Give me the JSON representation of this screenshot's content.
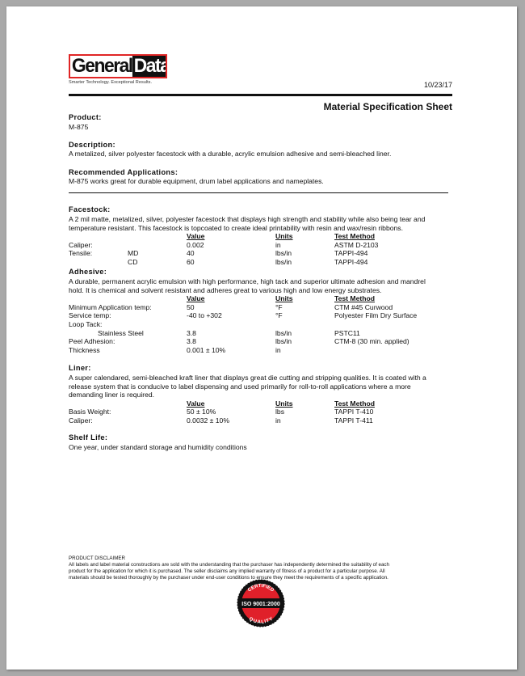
{
  "logo": {
    "text_a": "General",
    "text_b": "Data",
    "tagline": "Smarter Technology. Exceptional Results."
  },
  "date": "10/23/17",
  "title": "Material Specification Sheet",
  "product": {
    "heading": "Product:",
    "value": "M-875"
  },
  "description": {
    "heading": "Description:",
    "text": "A metalized, silver polyester facestock with a durable, acrylic emulsion adhesive and semi-bleached liner."
  },
  "applications": {
    "heading": "Recommended Applications:",
    "text": "M-875 works great for durable equipment, drum label applications and nameplates."
  },
  "table_headers": {
    "value": "Value",
    "units": "Units",
    "test": "Test Method"
  },
  "facestock": {
    "heading": "Facestock:",
    "lines": [
      "A 2 mil matte, metalized, silver, polyester facestock that displays high strength and stability while also being tear and",
      "temperature resistant. This facestock is topcoated to create ideal printability with resin and wax/resin ribbons."
    ],
    "rows": [
      [
        "Caliper:",
        "",
        "0.002",
        "in",
        "ASTM D-2103"
      ],
      [
        "Tensile:",
        "MD",
        "40",
        "lbs/in",
        "TAPPI-494"
      ],
      [
        "",
        "CD",
        "60",
        "lbs/in",
        "TAPPI-494"
      ]
    ]
  },
  "adhesive": {
    "heading": "Adhesive:",
    "lines": [
      "A durable, permanent acrylic emulsion with high performance, high tack and superior ultimate adhesion and mandrel",
      "hold. It is chemical and solvent resistant and adheres great to various high and low energy substrates."
    ],
    "rows": [
      [
        "Minimum Application temp:",
        "",
        "50",
        "°F",
        "CTM #45 Curwood"
      ],
      [
        "Service temp:",
        "",
        "-40 to +302",
        "°F",
        "Polyester Film Dry Surface"
      ],
      [
        "Loop Tack:",
        "",
        "",
        "",
        ""
      ],
      [
        "",
        "Stainless Steel",
        "3.8",
        "lbs/in",
        "PSTC11"
      ],
      [
        "Peel Adhesion:",
        "",
        "3.8",
        "lbs/in",
        "CTM-8 (30 min. applied)"
      ],
      [
        "Thickness",
        "",
        "0.001 ± 10%",
        "in",
        ""
      ]
    ]
  },
  "liner": {
    "heading": "Liner:",
    "lines": [
      "A super calendared, semi-bleached kraft liner that displays great die cutting and stripping qualities. It is coated with a",
      "release system that is conducive to label dispensing and used primarily for roll-to-roll applications where a more",
      "demanding liner is required."
    ],
    "rows": [
      [
        "Basis Weight:",
        "",
        "50 ± 10%",
        "lbs",
        "TAPPI T-410"
      ],
      [
        "Caliper:",
        "",
        "0.0032 ± 10%",
        "in",
        "TAPPI T-411"
      ]
    ]
  },
  "shelf_life": {
    "heading": "Shelf Life:",
    "text": "One year, under standard storage and humidity conditions"
  },
  "disclaimer": {
    "heading": "PRODUCT DISCLAIMER",
    "lines": [
      "All labels and label material constructions are sold with the understanding that the purchaser has independently determined the suitability of each",
      "product for the application for which it is purchased. The seller disclaims any implied warranty of fitness of a product for a particular purpose. All",
      "materials should be tested thoroughly by the purchaser under end-user conditions to ensure they meet the requirements of a specific application."
    ]
  },
  "seal": {
    "top": "CERTIFIED",
    "middle": "ISO 9001:2000",
    "bottom": "QUALITY",
    "color": "#e0202a"
  }
}
